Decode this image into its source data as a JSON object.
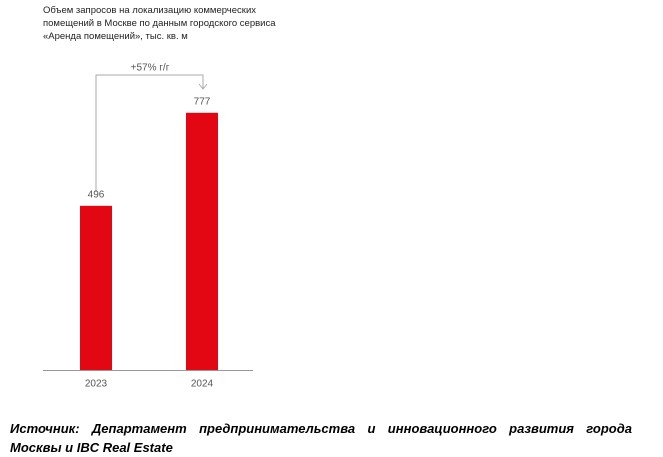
{
  "chart_data": {
    "type": "bar",
    "title": "Объем запросов на локализацию коммерческих помещений в Москве по данным городского сервиса «Аренда помещений», тыс. кв. м",
    "categories": [
      "2023",
      "2024"
    ],
    "values": [
      496,
      777
    ],
    "color": "#e30613",
    "annotation": "+57% г/г"
  },
  "source": "Источник: Департамент предпринимательства и инновационного развития города Москвы и IBC Real Estate"
}
